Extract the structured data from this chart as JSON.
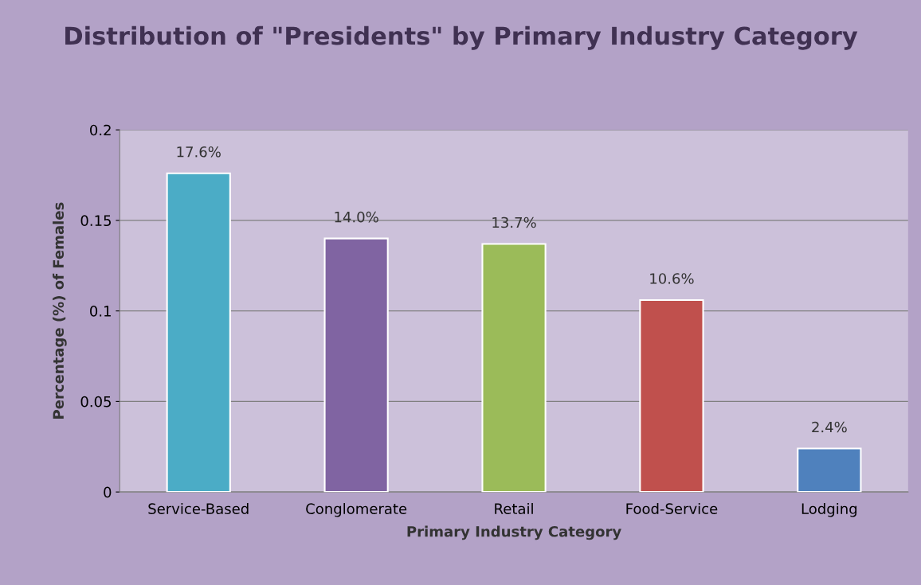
{
  "chart_data": {
    "type": "bar",
    "title": "Distribution of \"Presidents\" by Primary Industry Category",
    "xlabel": "Primary Industry Category",
    "ylabel": "Percentage (%) of Females",
    "categories": [
      "Service-Based",
      "Conglomerate",
      "Retail",
      "Food-Service",
      "Lodging"
    ],
    "values": [
      0.176,
      0.14,
      0.137,
      0.106,
      0.024
    ],
    "colors": [
      "#4bacc6",
      "#8064a2",
      "#9bbb59",
      "#c0504d",
      "#4f81bd"
    ],
    "value_labels": [
      "17.6%",
      "14.0%",
      "13.7%",
      "10.6%",
      "2.4%"
    ],
    "ylim": [
      0,
      0.2
    ],
    "yticks": [
      0,
      0.05,
      0.1,
      0.15,
      0.2
    ],
    "grid": "y"
  }
}
